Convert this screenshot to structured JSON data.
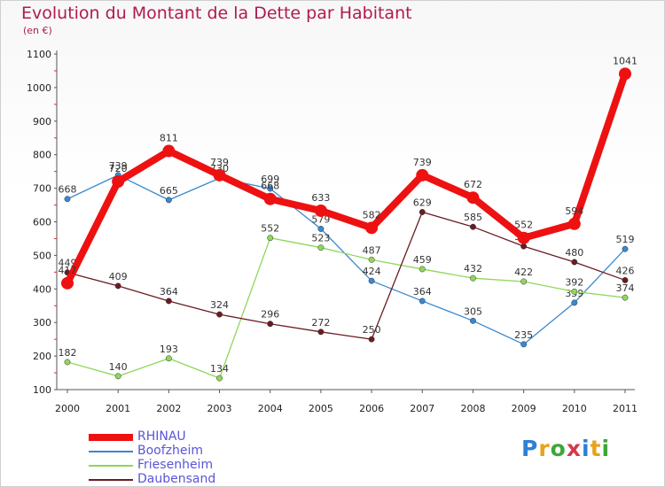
{
  "title": "Evolution du Montant de la Dette par Habitant",
  "unit_label": "(en €)",
  "logo": {
    "text": "Proxiti",
    "colors": [
      "#2e7fd6",
      "#e8a21a",
      "#3da63a",
      "#d6384b",
      "#2e7fd6",
      "#e8a21a",
      "#3da63a"
    ]
  },
  "chart_data": {
    "type": "line",
    "title": "Evolution du Montant de la Dette par Habitant",
    "ylabel": "(en €)",
    "xlabel": "",
    "x": [
      "2000",
      "2001",
      "2002",
      "2003",
      "2004",
      "2005",
      "2006",
      "2007",
      "2008",
      "2009",
      "2010",
      "2011"
    ],
    "ylim": [
      100,
      1100
    ],
    "yticks": [
      100,
      200,
      300,
      400,
      500,
      600,
      700,
      800,
      900,
      1000,
      1100
    ],
    "grid": false,
    "legend_position": "bottom-left",
    "series": [
      {
        "name": "Boofzheim",
        "color": "#3a88d0",
        "values": [
          668,
          739,
          665,
          730,
          699,
          579,
          424,
          364,
          305,
          235,
          359,
          519
        ]
      },
      {
        "name": "Friesenheim",
        "color": "#8fd65a",
        "values": [
          182,
          140,
          193,
          134,
          552,
          523,
          487,
          459,
          432,
          422,
          392,
          374
        ]
      },
      {
        "name": "Daubensand",
        "color": "#6a1c22",
        "values": [
          449,
          409,
          364,
          324,
          296,
          272,
          250,
          629,
          585,
          527,
          480,
          426
        ]
      },
      {
        "name": "RHINAU",
        "color": "#ee1111",
        "values": [
          417,
          720,
          811,
          739,
          668,
          633,
          582,
          739,
          672,
          552,
          594,
          1041
        ]
      }
    ],
    "legend_order": [
      "RHINAU",
      "Boofzheim",
      "Friesenheim",
      "Daubensand"
    ]
  }
}
